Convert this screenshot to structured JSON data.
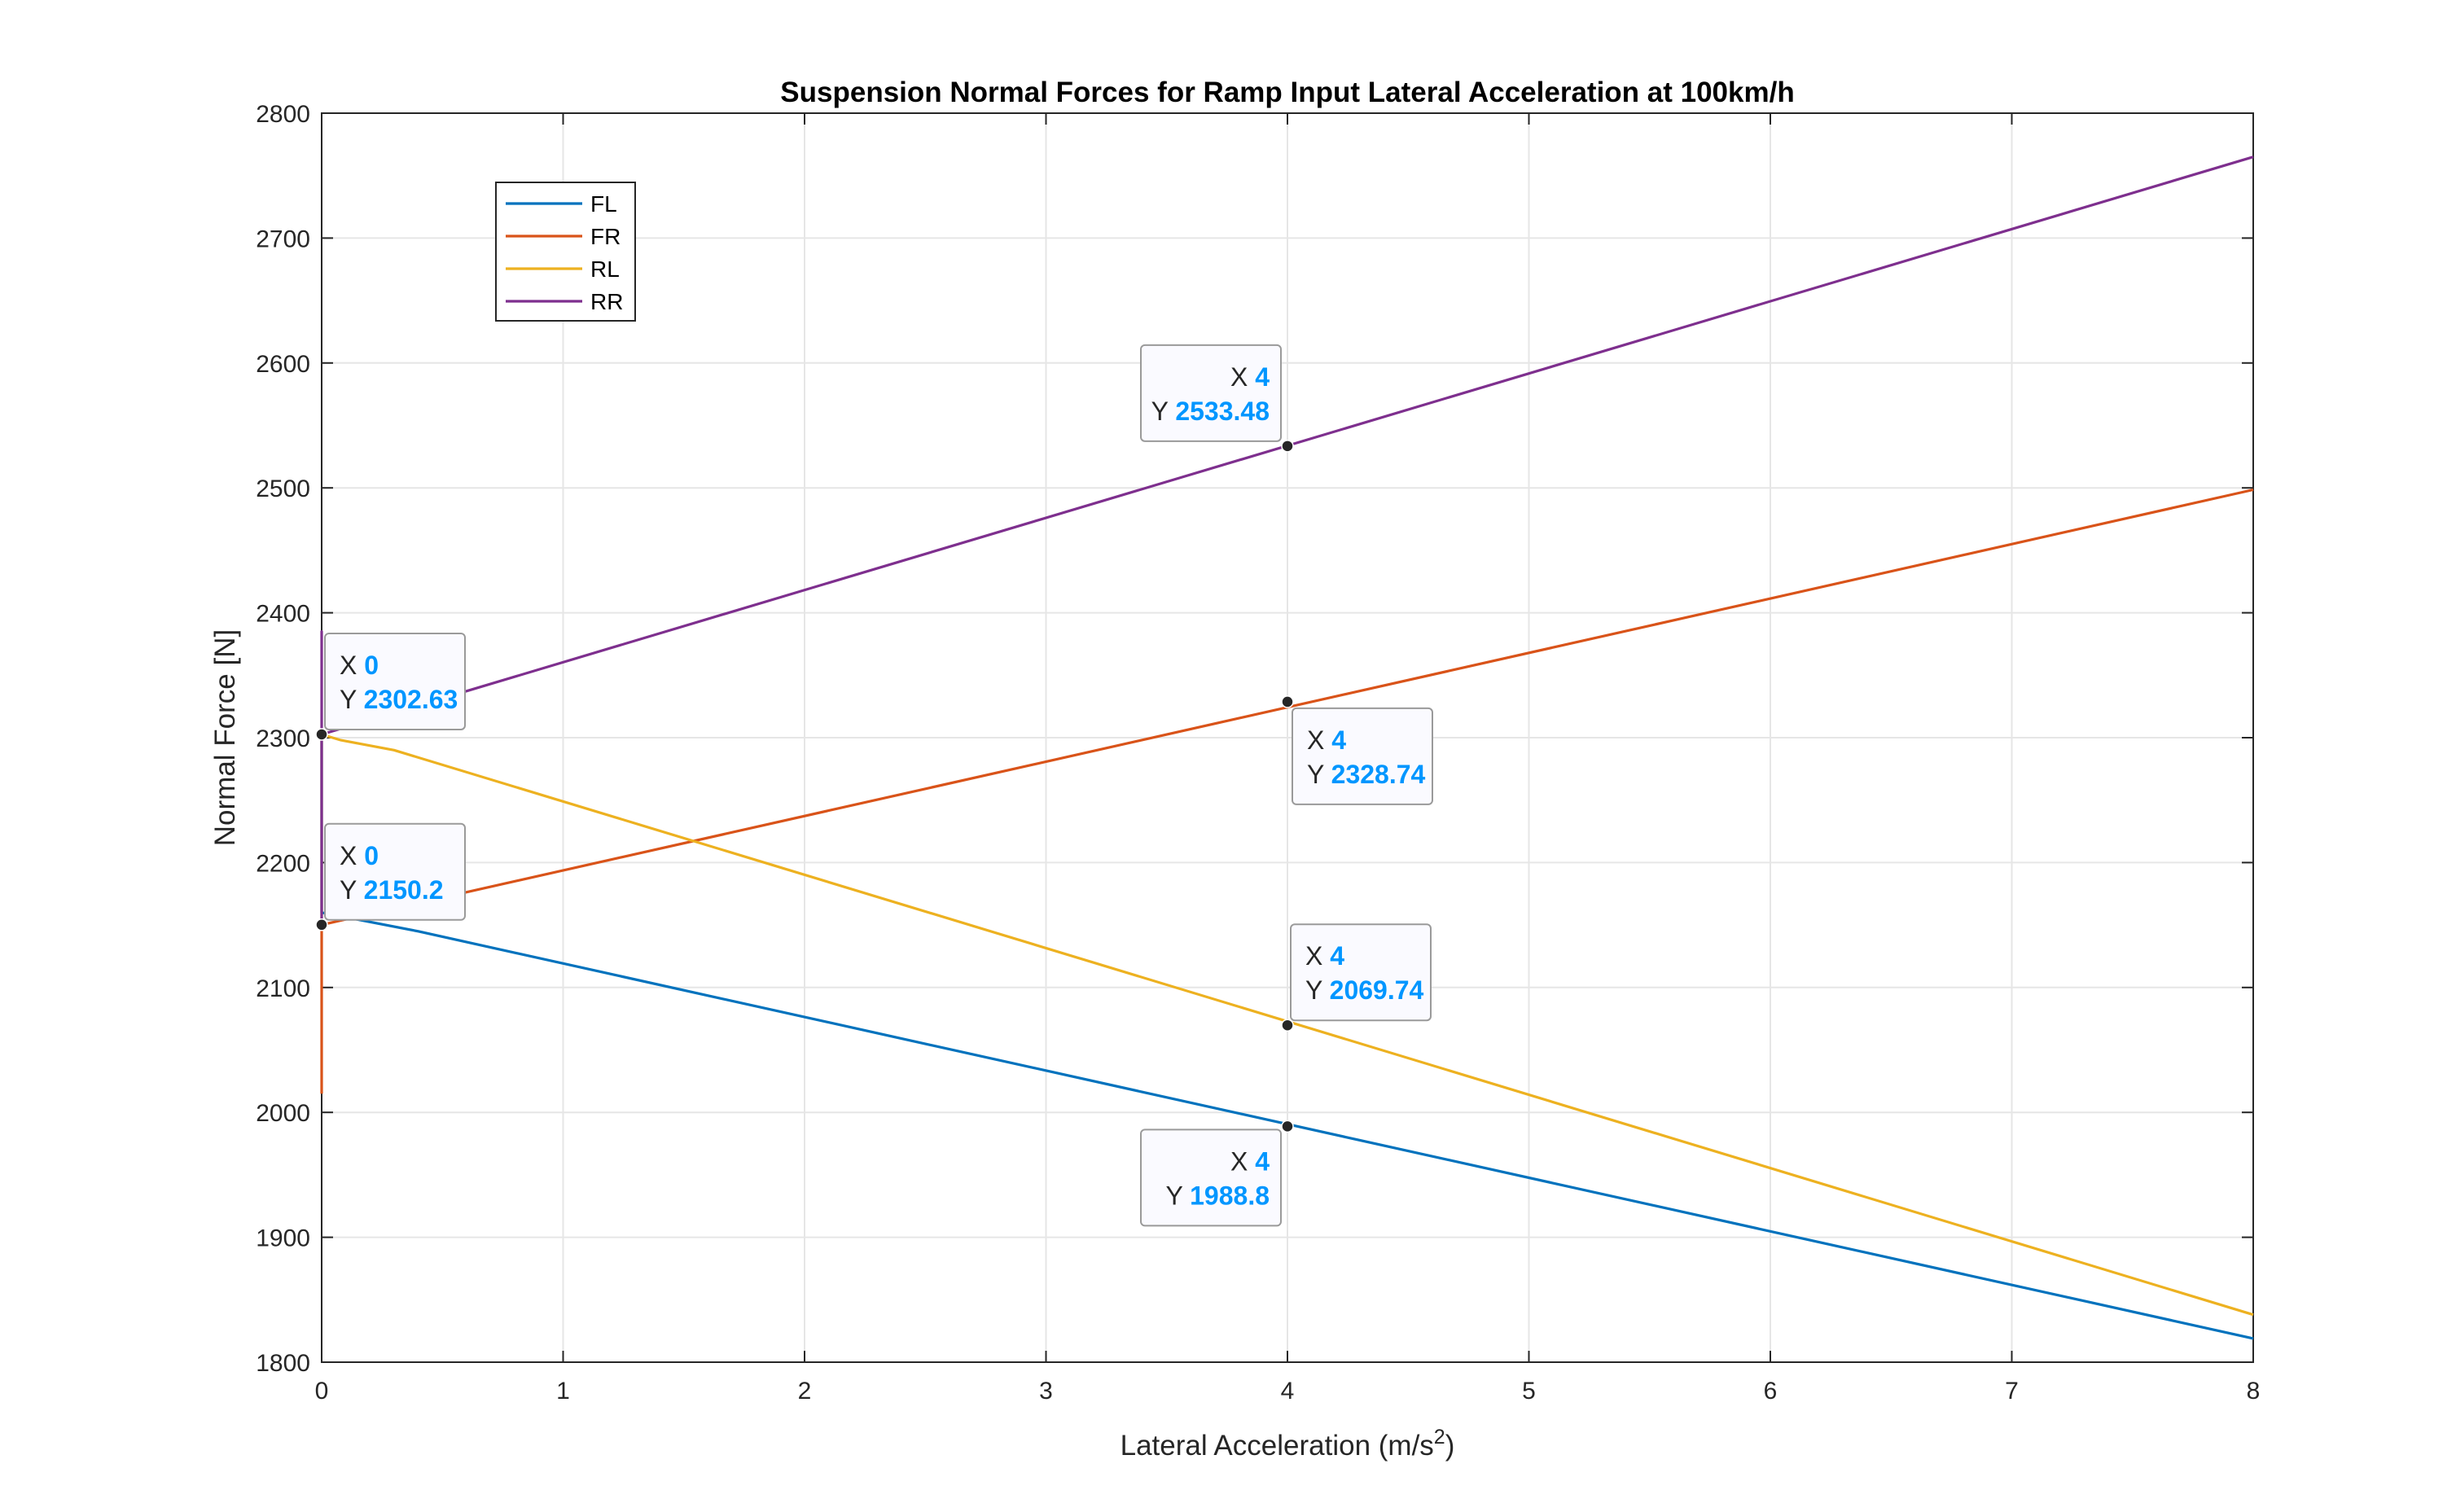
{
  "chart_data": {
    "type": "line",
    "title": "Suspension Normal Forces for Ramp Input Lateral Acceleration at 100km/h",
    "xlabel": "Lateral Acceleration (m/s",
    "xlabel_sup": "2",
    "xlabel_close": ")",
    "ylabel": "Normal Force [N]",
    "xlim": [
      0,
      8
    ],
    "ylim": [
      1800,
      2800
    ],
    "xticks": [
      "0",
      "1",
      "2",
      "3",
      "4",
      "5",
      "6",
      "7",
      "8"
    ],
    "yticks": [
      "1800",
      "1900",
      "2000",
      "2100",
      "2200",
      "2300",
      "2400",
      "2500",
      "2600",
      "2700",
      "2800"
    ],
    "grid": true,
    "legend_position": "upper-left",
    "series": [
      {
        "name": "FL",
        "color": "#0072BD",
        "x": [
          0,
          0,
          0.4,
          8
        ],
        "y": [
          2302.63,
          2160,
          2145,
          1819
        ]
      },
      {
        "name": "FR",
        "color": "#D95319",
        "x": [
          0,
          0,
          8
        ],
        "y": [
          2015,
          2150.2,
          2498.5
        ]
      },
      {
        "name": "RL",
        "color": "#EDB120",
        "x": [
          0,
          0,
          0.08,
          0.3,
          8
        ],
        "y": [
          2150.2,
          2302.63,
          2298,
          2290,
          1838
        ]
      },
      {
        "name": "RR",
        "color": "#7E2F8E",
        "x": [
          0,
          0,
          0,
          8
        ],
        "y": [
          2150.2,
          2385,
          2302.63,
          2765
        ]
      }
    ],
    "datatips": [
      {
        "x_label": "X",
        "x_value": "4",
        "y_label": "Y",
        "y_value": "2533.48",
        "x": 4,
        "y": 2533.48,
        "placement": "above-left"
      },
      {
        "x_label": "X",
        "x_value": "0",
        "y_label": "Y",
        "y_value": "2302.63",
        "x": 0,
        "y": 2302.63,
        "placement": "above-right"
      },
      {
        "x_label": "X",
        "x_value": "4",
        "y_label": "Y",
        "y_value": "2328.74",
        "x": 4,
        "y": 2328.74,
        "placement": "below-right"
      },
      {
        "x_label": "X",
        "x_value": "0",
        "y_label": "Y",
        "y_value": "2150.2",
        "x": 0,
        "y": 2150.2,
        "placement": "above-right"
      },
      {
        "x_label": "X",
        "x_value": "4",
        "y_label": "Y",
        "y_value": "2069.74",
        "x": 4,
        "y": 2069.74,
        "placement": "above-right"
      },
      {
        "x_label": "X",
        "x_value": "4",
        "y_label": "Y",
        "y_value": "1988.8",
        "x": 4,
        "y": 1988.8,
        "placement": "below-left"
      }
    ],
    "colors": {
      "datatip_value": "#0096FF",
      "grid": "#E6E6E6",
      "axes": "#262626"
    }
  }
}
